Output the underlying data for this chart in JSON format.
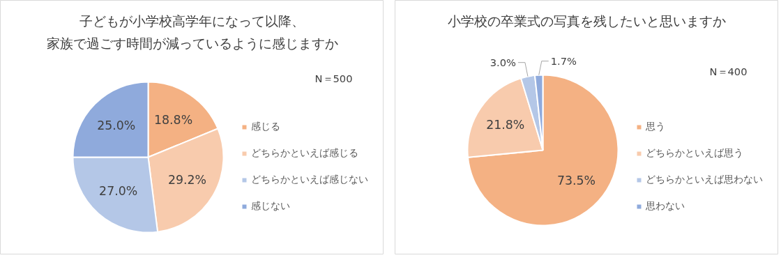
{
  "chart_data": [
    {
      "type": "pie",
      "title": "子どもが小学校高学年になって以降、",
      "subtitle": "家族で過ごす時間が減っているように感じますか",
      "annotations": [
        "N＝500"
      ],
      "categories": [
        "感じる",
        "どちらかといえば感じる",
        "どちらかといえば感じない",
        "感じない"
      ],
      "values": [
        18.8,
        29.2,
        27.0,
        25.0
      ],
      "colors": [
        "#f4b183",
        "#f8cbad",
        "#b4c7e7",
        "#8faadc"
      ],
      "value_labels": [
        "18.8%",
        "29.2%",
        "27.0%",
        "25.0%"
      ],
      "legend": "right"
    },
    {
      "type": "pie",
      "title": "小学校の卒業式の写真を残したいと思いますか",
      "annotations": [
        "N＝400"
      ],
      "categories": [
        "思う",
        "どちらかといえば思う",
        "どちらかといえば思わない",
        "思わない"
      ],
      "values": [
        73.5,
        21.8,
        3.0,
        1.7
      ],
      "colors": [
        "#f4b183",
        "#f8cbad",
        "#b4c7e7",
        "#8faadc"
      ],
      "value_labels": [
        "73.5%",
        "21.8%",
        "3.0%",
        "1.7%"
      ],
      "legend": "right"
    }
  ]
}
